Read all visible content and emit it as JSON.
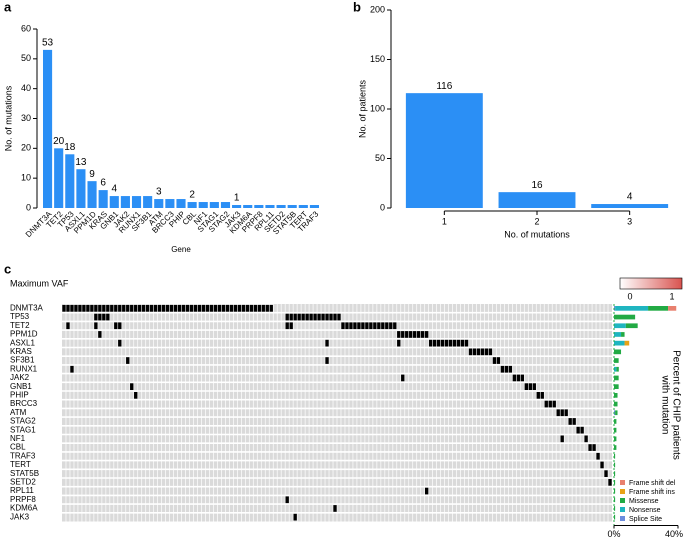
{
  "chart_data": [
    {
      "type": "bar",
      "panel_label": "a",
      "xlabel": "Gene",
      "ylabel": "No. of mutations",
      "categories": [
        "DNMT3A",
        "TET2",
        "TP53",
        "ASXL1",
        "PPM1D",
        "KRAS",
        "GNB1",
        "JAK2",
        "RUNX1",
        "SF3B1",
        "ATM",
        "BRCC3",
        "PHIP",
        "CBL",
        "NF1",
        "STAG1",
        "STAG2",
        "JAK3",
        "KDM6A",
        "PRPF8",
        "RPL11",
        "SETD2",
        "STAT5B",
        "TERT",
        "TRAF3"
      ],
      "values": [
        53,
        20,
        18,
        13,
        9,
        6,
        4,
        4,
        4,
        4,
        3,
        3,
        3,
        2,
        2,
        2,
        2,
        1,
        1,
        1,
        1,
        1,
        1,
        1,
        1
      ],
      "value_labels": [
        "53",
        "20",
        "18",
        "13",
        "9",
        "6",
        "4",
        null,
        null,
        null,
        "3",
        null,
        null,
        "2",
        null,
        null,
        null,
        "1",
        null,
        null,
        null,
        null,
        null,
        null,
        null
      ],
      "color": "#2b8ff5",
      "ylim": [
        0,
        60
      ],
      "yticks": [
        0,
        10,
        20,
        30,
        40,
        50,
        60
      ]
    },
    {
      "type": "bar",
      "panel_label": "b",
      "xlabel": "No. of mutations",
      "ylabel": "No. of patients",
      "categories": [
        "1",
        "2",
        "3"
      ],
      "values": [
        116,
        16,
        4
      ],
      "value_labels": [
        "116",
        "16",
        "4"
      ],
      "color": "#2b8ff5",
      "ylim": [
        0,
        200
      ],
      "yticks": [
        0,
        50,
        100,
        150,
        200
      ]
    },
    {
      "type": "oncoprint",
      "panel_label": "c",
      "vaf_legend": {
        "title": "Maximum VAF",
        "ticks": [
          0,
          1
        ],
        "colors": [
          "#ffffff",
          "#d9534f"
        ]
      },
      "genes": [
        "DNMT3A",
        "TP53",
        "TET2",
        "PPM1D",
        "ASXL1",
        "KRAS",
        "SF3B1",
        "RUNX1",
        "JAK2",
        "GNB1",
        "PHIP",
        "BRCC3",
        "ATM",
        "STAG2",
        "STAG1",
        "NF1",
        "CBL",
        "TRAF3",
        "TERT",
        "STAT5B",
        "SETD2",
        "RPL11",
        "PRPF8",
        "KDM6A",
        "JAK3"
      ],
      "mutated_columns": [
        [
          0,
          1,
          2,
          3,
          4,
          5,
          6,
          7,
          8,
          9,
          10,
          11,
          12,
          13,
          14,
          15,
          16,
          17,
          18,
          19,
          20,
          21,
          22,
          23,
          24,
          25,
          26,
          27,
          28,
          29,
          30,
          31,
          32,
          33,
          34,
          35,
          36,
          37,
          38,
          39,
          40,
          41,
          42,
          43,
          44,
          45,
          46,
          47,
          48,
          49,
          50,
          51,
          52
        ],
        [
          8,
          9,
          10,
          11,
          56,
          57,
          58,
          59,
          60,
          61,
          62,
          63,
          64,
          65,
          66,
          67,
          68,
          69
        ],
        [
          1,
          8,
          13,
          14,
          56,
          57,
          70,
          71,
          72,
          73,
          74,
          75,
          76,
          77,
          78,
          79,
          80,
          81,
          82,
          83
        ],
        [
          9,
          84,
          85,
          86,
          87,
          88,
          89,
          90,
          91
        ],
        [
          14,
          66,
          84,
          92,
          93,
          94,
          95,
          96,
          97,
          98,
          99,
          100,
          101
        ],
        [
          102,
          103,
          104,
          105,
          106,
          107
        ],
        [
          16,
          66,
          108,
          109
        ],
        [
          2,
          110,
          111,
          112
        ],
        [
          85,
          113,
          114,
          115
        ],
        [
          17,
          116,
          117,
          118
        ],
        [
          18,
          119,
          120
        ],
        [
          121,
          122,
          123
        ],
        [
          124,
          125,
          126
        ],
        [
          127,
          128
        ],
        [
          129,
          130
        ],
        [
          125,
          131
        ],
        [
          132,
          133
        ],
        [
          134
        ],
        [
          135
        ],
        [
          136
        ],
        [
          137
        ],
        [
          91
        ],
        [
          56
        ],
        [
          68
        ],
        [
          58
        ]
      ],
      "cell_color": "#000000",
      "xlabel": [
        "Percent of CHIP patients",
        "with mutation"
      ],
      "xlim": [
        0,
        40
      ],
      "xticks": [
        {
          "value": 0,
          "label": "0%"
        },
        {
          "value": 40,
          "label": "40%"
        }
      ],
      "series": [
        {
          "name": "Frame shift del",
          "color": "#e8806e",
          "values": [
            5.1,
            0,
            0,
            0,
            0,
            0,
            0,
            0,
            0,
            0,
            0,
            0,
            0,
            0,
            0,
            0,
            0,
            0,
            0,
            0,
            0,
            0,
            0,
            0,
            0
          ]
        },
        {
          "name": "Frame shift ins",
          "color": "#e8a317",
          "values": [
            0,
            0,
            0,
            0,
            2.9,
            0,
            0,
            0,
            0,
            0,
            0,
            0,
            0,
            0,
            0,
            0,
            0,
            0,
            0,
            0,
            0,
            0,
            0,
            0,
            0
          ]
        },
        {
          "name": "Missense",
          "color": "#22aa44",
          "values": [
            12.5,
            13.2,
            7.4,
            2.2,
            0,
            4.4,
            2.9,
            1.5,
            2.9,
            2.9,
            2.2,
            2.2,
            1.5,
            1.5,
            1.5,
            1.5,
            1.5,
            0.7,
            0.7,
            0.7,
            0.7,
            0.7,
            0.7,
            0.7,
            0.7
          ]
        },
        {
          "name": "Nonsense",
          "color": "#1fb5c0",
          "values": [
            20.6,
            0,
            7.4,
            4.4,
            6.6,
            0,
            0,
            1.5,
            0,
            0,
            0,
            0,
            0,
            0,
            0,
            0,
            0,
            0,
            0,
            0,
            0,
            0,
            0,
            0,
            0
          ]
        },
        {
          "name": "Splice Site",
          "color": "#6b8cde",
          "values": [
            0.7,
            0,
            0,
            0,
            0,
            0,
            0,
            0,
            0,
            0,
            0,
            0,
            0.7,
            0,
            0,
            0,
            0,
            0,
            0,
            0,
            0,
            0,
            0,
            0,
            0
          ]
        }
      ]
    }
  ]
}
